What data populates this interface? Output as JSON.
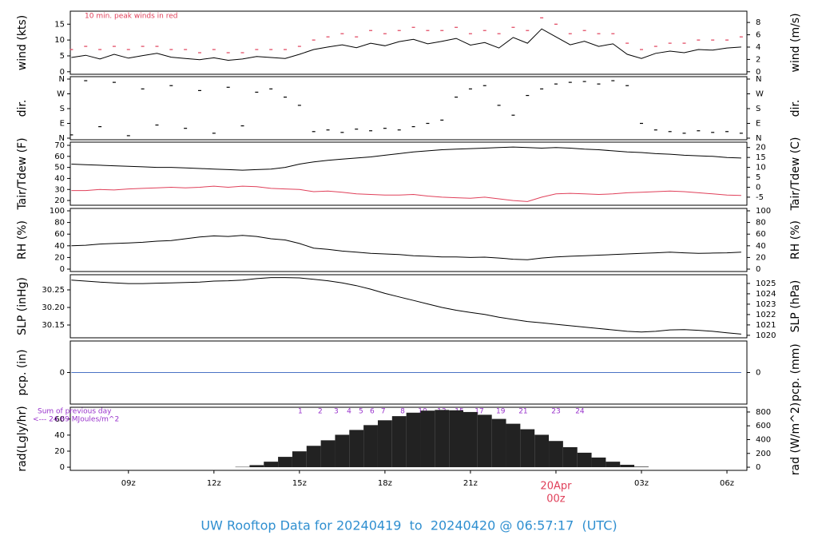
{
  "title": "UW Rooftop Data for 20240419  to  20240420 @ 06:57:17  (UTC)",
  "chart_data": [
    {
      "type": "line",
      "ylabel": "wind (kts)",
      "y2label": "wind (m/s)",
      "annotation": "10 min. peak winds in red",
      "xlim": [
        6.96,
        30.7
      ],
      "ylim": [
        -0.8,
        19.1
      ],
      "yticks": [
        0,
        5,
        10,
        15
      ],
      "y2lim": [
        -0.41,
        9.83
      ],
      "y2ticks": [
        0,
        2,
        4,
        6,
        8
      ],
      "x": [
        7,
        7.5,
        8,
        8.5,
        9,
        9.5,
        10,
        10.5,
        11,
        11.5,
        12,
        12.5,
        13,
        13.5,
        14,
        14.5,
        15,
        15.5,
        16,
        16.5,
        17,
        17.5,
        18,
        18.5,
        19,
        19.5,
        20,
        20.5,
        21,
        21.5,
        22,
        22.5,
        23,
        23.5,
        24,
        24.5,
        25,
        25.5,
        26,
        26.5,
        27,
        27.5,
        28,
        28.5,
        29,
        29.5,
        30,
        30.5
      ],
      "series": [
        {
          "name": "wind",
          "color": "#000000",
          "marker": "line",
          "values": [
            4.5,
            5.2,
            4.0,
            5.5,
            4.3,
            5.1,
            5.8,
            4.6,
            4.2,
            3.8,
            4.4,
            3.6,
            4.0,
            4.8,
            4.5,
            4.2,
            5.5,
            7.0,
            7.8,
            8.5,
            7.6,
            9.0,
            8.2,
            9.5,
            10.2,
            8.8,
            9.6,
            10.5,
            8.4,
            9.2,
            7.5,
            10.8,
            9.0,
            13.5,
            11.0,
            8.5,
            9.6,
            8.0,
            8.8,
            5.5,
            4.2,
            5.8,
            6.5,
            6.0,
            7.0,
            6.8,
            7.5,
            7.8
          ]
        },
        {
          "name": "10 min. peak",
          "color": "#e0405a",
          "marker": "dash",
          "values": [
            7,
            8,
            7,
            8,
            7,
            8,
            8,
            7,
            7,
            6,
            7,
            6,
            6,
            7,
            7,
            7,
            8,
            10,
            11,
            12,
            11,
            13,
            12,
            13,
            14,
            13,
            13,
            14,
            12,
            13,
            12,
            14,
            13,
            17,
            15,
            12,
            13,
            12,
            12,
            9,
            7,
            8,
            9,
            9,
            10,
            10,
            10,
            11
          ]
        }
      ]
    },
    {
      "type": "scatter",
      "ylabel": "dir.",
      "y2label": "dir.",
      "xlim": [
        6.96,
        30.7
      ],
      "ylim": [
        -9.7,
        374.6
      ],
      "yticks": [
        {
          "value": 0,
          "label": "N"
        },
        {
          "value": 90,
          "label": "E"
        },
        {
          "value": 180,
          "label": "S"
        },
        {
          "value": 270,
          "label": "W"
        },
        {
          "value": 360,
          "label": "N"
        }
      ],
      "y2lim": [
        -9.7,
        374.6
      ],
      "y2ticks": [
        {
          "value": 0,
          "label": "N"
        },
        {
          "value": 90,
          "label": "E"
        },
        {
          "value": 180,
          "label": "S"
        },
        {
          "value": 270,
          "label": "W"
        },
        {
          "value": 360,
          "label": "N"
        }
      ],
      "x": [
        7,
        7.5,
        8,
        8.5,
        9,
        9.5,
        10,
        10.5,
        11,
        11.5,
        12,
        12.5,
        13,
        13.5,
        14,
        14.5,
        15,
        15.5,
        16,
        16.5,
        17,
        17.5,
        18,
        18.5,
        19,
        19.5,
        20,
        20.5,
        21,
        21.5,
        22,
        22.5,
        23,
        23.5,
        24,
        24.5,
        25,
        25.5,
        26,
        26.5,
        27,
        27.5,
        28,
        28.5,
        29,
        29.5,
        30,
        30.5
      ],
      "series": [
        {
          "name": "dir",
          "color": "#000000",
          "values": [
            20,
            350,
            70,
            340,
            15,
            300,
            80,
            320,
            60,
            290,
            30,
            310,
            75,
            280,
            300,
            250,
            200,
            40,
            50,
            35,
            55,
            45,
            60,
            50,
            70,
            90,
            110,
            250,
            300,
            320,
            200,
            140,
            260,
            300,
            330,
            340,
            345,
            330,
            350,
            320,
            90,
            50,
            40,
            30,
            45,
            35,
            40,
            30
          ]
        }
      ]
    },
    {
      "type": "line",
      "ylabel": "Tair/Tdew (F)",
      "y2label": "Tair/Tdew (C)",
      "xlim": [
        6.96,
        30.7
      ],
      "ylim": [
        15.7,
        72.9
      ],
      "yticks": [
        20,
        30,
        40,
        50,
        60,
        70
      ],
      "y2lim": [
        -9.06,
        22.7
      ],
      "y2ticks": [
        -5,
        0,
        5,
        10,
        15,
        20
      ],
      "x": [
        7,
        7.5,
        8,
        8.5,
        9,
        9.5,
        10,
        10.5,
        11,
        11.5,
        12,
        12.5,
        13,
        13.5,
        14,
        14.5,
        15,
        15.5,
        16,
        16.5,
        17,
        17.5,
        18,
        18.5,
        19,
        19.5,
        20,
        20.5,
        21,
        21.5,
        22,
        22.5,
        23,
        23.5,
        24,
        24.5,
        25,
        25.5,
        26,
        26.5,
        27,
        27.5,
        28,
        28.5,
        29,
        29.5,
        30,
        30.5
      ],
      "series": [
        {
          "name": "Tair",
          "color": "#000000",
          "marker": "line",
          "values": [
            53,
            52.5,
            52,
            51.5,
            51,
            50.5,
            50,
            50,
            49.5,
            49,
            48.5,
            48,
            47.5,
            48,
            48.5,
            50,
            53,
            55,
            56.5,
            57.5,
            58.5,
            59.5,
            61,
            62.5,
            64,
            65,
            66,
            66.5,
            67,
            67.5,
            68,
            68.5,
            68,
            67.5,
            68,
            67.5,
            66.5,
            66,
            65,
            64,
            63.5,
            62.5,
            62,
            61,
            60.5,
            60,
            59,
            58.5
          ]
        },
        {
          "name": "Tdew",
          "color": "#e0405a",
          "marker": "line",
          "values": [
            29,
            29,
            30,
            29.5,
            30.5,
            31,
            31.5,
            32,
            31.5,
            32,
            33,
            32,
            33,
            32.5,
            31,
            30.5,
            30,
            28,
            28.5,
            27.5,
            26,
            25.5,
            25,
            25,
            25.5,
            24,
            23,
            22.5,
            22,
            23,
            21.5,
            20,
            19,
            23,
            26,
            26.5,
            26,
            25.5,
            26,
            27,
            27.5,
            28,
            28.5,
            28,
            27,
            26,
            25,
            24.5
          ]
        }
      ]
    },
    {
      "type": "line",
      "ylabel": "RH (%)",
      "y2label": "RH (%)",
      "xlim": [
        6.96,
        30.7
      ],
      "ylim": [
        -4.1,
        104.1
      ],
      "yticks": [
        0,
        20,
        40,
        60,
        80,
        100
      ],
      "y2lim": [
        -4.1,
        104.1
      ],
      "y2ticks": [
        0,
        20,
        40,
        60,
        80,
        100
      ],
      "x": [
        7,
        7.5,
        8,
        8.5,
        9,
        9.5,
        10,
        10.5,
        11,
        11.5,
        12,
        12.5,
        13,
        13.5,
        14,
        14.5,
        15,
        15.5,
        16,
        16.5,
        17,
        17.5,
        18,
        18.5,
        19,
        19.5,
        20,
        20.5,
        21,
        21.5,
        22,
        22.5,
        23,
        23.5,
        24,
        24.5,
        25,
        25.5,
        26,
        26.5,
        27,
        27.5,
        28,
        28.5,
        29,
        29.5,
        30,
        30.5
      ],
      "series": [
        {
          "name": "RH",
          "color": "#000000",
          "marker": "line",
          "values": [
            40,
            41,
            43,
            44,
            45,
            46,
            48,
            49,
            52,
            55,
            57,
            56,
            58,
            56,
            52,
            50,
            44,
            36,
            34,
            31,
            29,
            27,
            26,
            25,
            23,
            22,
            21,
            21,
            20,
            20.5,
            19,
            17,
            16,
            19,
            21,
            22,
            23,
            24,
            25,
            26,
            27,
            28,
            29,
            28,
            27,
            27.5,
            28,
            29
          ]
        }
      ]
    },
    {
      "type": "line",
      "ylabel": "SLP (inHg)",
      "y2label": "SLP (hPa)",
      "xlim": [
        6.96,
        30.7
      ],
      "ylim": [
        30.1136,
        30.2932
      ],
      "yticks": [
        30.15,
        {
          "value": 30.2,
          "label": "30.20"
        },
        30.25
      ],
      "y2lim": [
        1019.76,
        1025.84
      ],
      "y2ticks": [
        1020,
        1021,
        1022,
        1023,
        1024,
        1025
      ],
      "x": [
        7,
        7.5,
        8,
        8.5,
        9,
        9.5,
        10,
        10.5,
        11,
        11.5,
        12,
        12.5,
        13,
        13.5,
        14,
        14.5,
        15,
        15.5,
        16,
        16.5,
        17,
        17.5,
        18,
        18.5,
        19,
        19.5,
        20,
        20.5,
        21,
        21.5,
        22,
        22.5,
        23,
        23.5,
        24,
        24.5,
        25,
        25.5,
        26,
        26.5,
        27,
        27.5,
        28,
        28.5,
        29,
        29.5,
        30,
        30.5
      ],
      "series": [
        {
          "name": "SLP",
          "color": "#000000",
          "marker": "line",
          "values": [
            30.278,
            30.275,
            30.272,
            30.27,
            30.268,
            30.268,
            30.269,
            30.27,
            30.271,
            30.272,
            30.275,
            30.276,
            30.278,
            30.282,
            30.285,
            30.285,
            30.284,
            30.28,
            30.276,
            30.27,
            30.262,
            30.252,
            30.24,
            30.23,
            30.22,
            30.21,
            30.2,
            30.192,
            30.186,
            30.18,
            30.172,
            30.166,
            30.16,
            30.156,
            30.152,
            30.148,
            30.144,
            30.14,
            30.136,
            30.132,
            30.13,
            30.132,
            30.136,
            30.137,
            30.135,
            30.132,
            30.128,
            30.124
          ]
        }
      ]
    },
    {
      "type": "line",
      "ylabel": "pcp. (in)",
      "y2label": "pcp. (mm)",
      "xlim": [
        6.96,
        30.7
      ],
      "ylim": [
        -1,
        1
      ],
      "yticks": [
        0
      ],
      "y2lim": [
        -25.4,
        25.4
      ],
      "y2ticks": [
        0
      ],
      "x": [
        7,
        30.5
      ],
      "series": [
        {
          "name": "pcp",
          "color": "#4a72c4",
          "marker": "line",
          "values": [
            0,
            0
          ]
        }
      ]
    },
    {
      "type": "bar",
      "ylabel": "rad(Lgly/hr)",
      "y2label": "rad (W/m^2)",
      "annotations": [
        "Sum of previous day",
        "<--- 24.69 MJoules/m^2"
      ],
      "hourly_labels": [
        {
          "x": 15.03,
          "text": "1"
        },
        {
          "x": 15.73,
          "text": "2"
        },
        {
          "x": 16.29,
          "text": "3"
        },
        {
          "x": 16.74,
          "text": "4"
        },
        {
          "x": 17.16,
          "text": "5"
        },
        {
          "x": 17.55,
          "text": "6"
        },
        {
          "x": 17.94,
          "text": "7"
        },
        {
          "x": 18.62,
          "text": "8"
        },
        {
          "x": 19.32,
          "text": "10"
        },
        {
          "x": 19.99,
          "text": "13"
        },
        {
          "x": 20.61,
          "text": "15"
        },
        {
          "x": 21.31,
          "text": "17"
        },
        {
          "x": 22.06,
          "text": "19"
        },
        {
          "x": 22.85,
          "text": "21"
        },
        {
          "x": 24.0,
          "text": "23"
        },
        {
          "x": 24.84,
          "text": "24"
        }
      ],
      "label_color": "#9933cc",
      "xlim": [
        6.96,
        30.7
      ],
      "ylim": [
        -3.93,
        74.7
      ],
      "yticks": [
        0,
        20,
        40,
        60
      ],
      "y2lim": [
        -45.7,
        868.6
      ],
      "y2ticks": [
        0,
        200,
        400,
        600,
        800
      ],
      "xticks": [
        {
          "value": 9,
          "label": "09z"
        },
        {
          "value": 12,
          "label": "12z"
        },
        {
          "value": 15,
          "label": "15z"
        },
        {
          "value": 18,
          "label": "18z"
        },
        {
          "value": 21,
          "label": "21z"
        },
        {
          "value": 24,
          "label": "00z"
        },
        {
          "value": 27,
          "label": "03z"
        },
        {
          "value": 30,
          "label": "06z"
        }
      ],
      "date_label": {
        "x": 24,
        "text": "20Apr",
        "color": "#e0405a"
      },
      "x": [
        13,
        13.5,
        14,
        14.5,
        15,
        15.5,
        16,
        16.5,
        17,
        17.5,
        18,
        18.5,
        19,
        19.5,
        20,
        20.5,
        21,
        21.5,
        22,
        22.5,
        23,
        23.5,
        24,
        24.5,
        25,
        25.5,
        26,
        26.5,
        27
      ],
      "series": [
        {
          "name": "rad",
          "color": "#222222",
          "axis": "y2",
          "values": [
            5,
            30,
            80,
            150,
            230,
            310,
            390,
            470,
            540,
            610,
            680,
            740,
            790,
            820,
            830,
            825,
            800,
            760,
            700,
            630,
            550,
            470,
            380,
            290,
            210,
            140,
            80,
            35,
            8
          ]
        }
      ]
    }
  ]
}
